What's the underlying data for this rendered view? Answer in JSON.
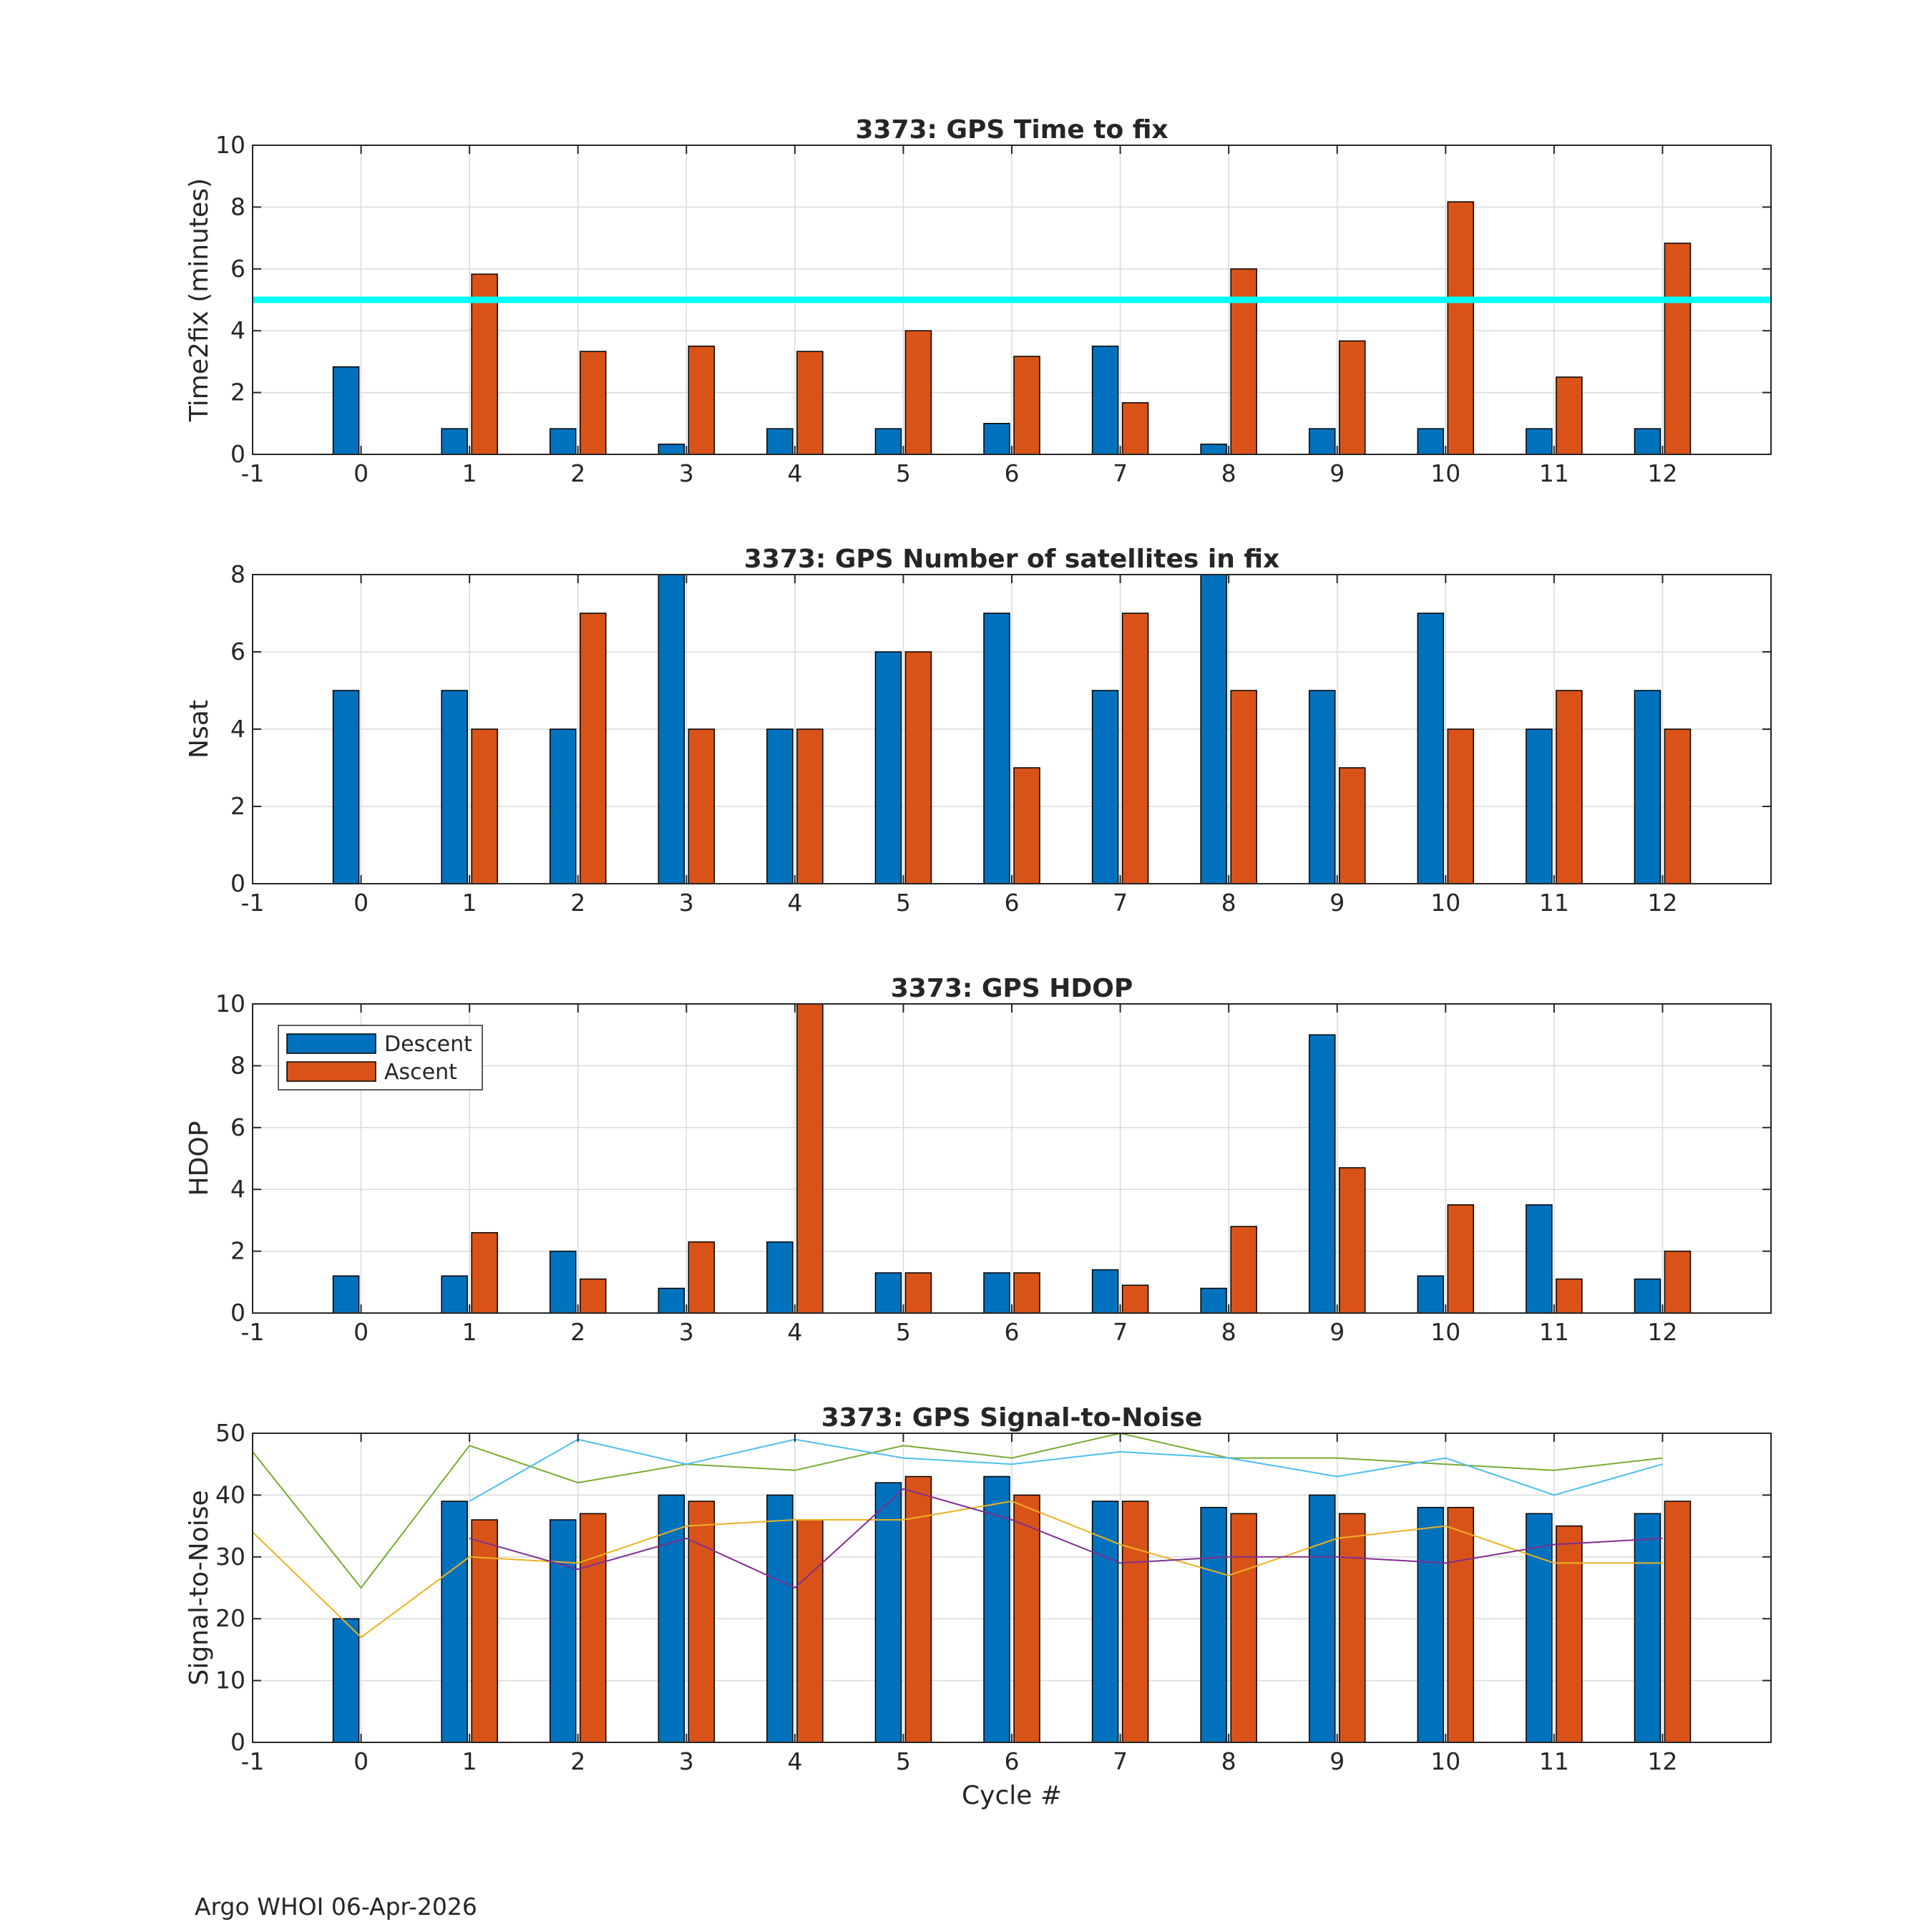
{
  "footer": "Argo WHOI 06-Apr-2026",
  "colors": {
    "descent": "#0072BD",
    "ascent": "#D95319",
    "threshold": "#00FFFF",
    "grid": "#DADADA",
    "axis": "#262626"
  },
  "legend": {
    "descent": "Descent",
    "ascent": "Ascent",
    "placement": "upper-left of HDOP panel"
  },
  "chart_data": [
    {
      "type": "bar",
      "title": "3373: GPS Time to fix",
      "ylabel": "Time2fix (minutes)",
      "xlabel": "",
      "xlim": [
        -1,
        13
      ],
      "ylim": [
        0,
        10
      ],
      "xticks": [
        -1,
        0,
        1,
        2,
        3,
        4,
        5,
        6,
        7,
        8,
        9,
        10,
        11,
        12
      ],
      "yticks": [
        0,
        2,
        4,
        6,
        8,
        10
      ],
      "categories": [
        0,
        1,
        2,
        3,
        4,
        5,
        6,
        7,
        8,
        9,
        10,
        11,
        12
      ],
      "series": [
        {
          "name": "Descent",
          "values": [
            2.83,
            0.83,
            0.83,
            0.33,
            0.83,
            0.83,
            1.0,
            3.5,
            0.33,
            0.83,
            0.83,
            0.83,
            0.83
          ]
        },
        {
          "name": "Ascent",
          "values": [
            null,
            5.83,
            3.33,
            3.5,
            3.33,
            4.0,
            3.17,
            1.67,
            6.0,
            3.67,
            8.17,
            2.5,
            6.83
          ]
        }
      ],
      "hline": {
        "y": 5,
        "color": "#00FFFF"
      }
    },
    {
      "type": "bar",
      "title": "3373: GPS Number of satellites in fix",
      "ylabel": "Nsat",
      "xlabel": "",
      "xlim": [
        -1,
        13
      ],
      "ylim": [
        0,
        8
      ],
      "xticks": [
        -1,
        0,
        1,
        2,
        3,
        4,
        5,
        6,
        7,
        8,
        9,
        10,
        11,
        12
      ],
      "yticks": [
        0,
        2,
        4,
        6,
        8
      ],
      "categories": [
        0,
        1,
        2,
        3,
        4,
        5,
        6,
        7,
        8,
        9,
        10,
        11,
        12
      ],
      "series": [
        {
          "name": "Descent",
          "values": [
            5,
            5,
            4,
            8,
            4,
            6,
            7,
            5,
            8,
            5,
            7,
            4,
            5
          ]
        },
        {
          "name": "Ascent",
          "values": [
            null,
            4,
            7,
            4,
            4,
            6,
            3,
            7,
            5,
            3,
            4,
            5,
            4
          ]
        }
      ]
    },
    {
      "type": "bar",
      "title": "3373: GPS HDOP",
      "ylabel": "HDOP",
      "xlabel": "",
      "xlim": [
        -1,
        13
      ],
      "ylim": [
        0,
        10
      ],
      "xticks": [
        -1,
        0,
        1,
        2,
        3,
        4,
        5,
        6,
        7,
        8,
        9,
        10,
        11,
        12
      ],
      "yticks": [
        0,
        2,
        4,
        6,
        8,
        10
      ],
      "categories": [
        0,
        1,
        2,
        3,
        4,
        5,
        6,
        7,
        8,
        9,
        10,
        11,
        12
      ],
      "series": [
        {
          "name": "Descent",
          "values": [
            1.2,
            1.2,
            2.0,
            0.8,
            2.3,
            1.3,
            1.3,
            1.4,
            0.8,
            9.0,
            1.2,
            3.5,
            1.1
          ]
        },
        {
          "name": "Ascent",
          "values": [
            null,
            2.6,
            1.1,
            2.3,
            10,
            1.3,
            1.3,
            0.9,
            2.8,
            4.7,
            3.5,
            1.1,
            2.0
          ]
        }
      ],
      "legend": true
    },
    {
      "type": "bar",
      "title": "3373: GPS Signal-to-Noise",
      "ylabel": "Signal-to-Noise",
      "xlabel": "Cycle #",
      "xlim": [
        -1,
        13
      ],
      "ylim": [
        0,
        50
      ],
      "xticks": [
        -1,
        0,
        1,
        2,
        3,
        4,
        5,
        6,
        7,
        8,
        9,
        10,
        11,
        12
      ],
      "yticks": [
        0,
        10,
        20,
        30,
        40,
        50
      ],
      "categories": [
        0,
        1,
        2,
        3,
        4,
        5,
        6,
        7,
        8,
        9,
        10,
        11,
        12
      ],
      "series": [
        {
          "name": "Descent",
          "values": [
            20,
            39,
            36,
            40,
            40,
            42,
            43,
            39,
            38,
            40,
            38,
            37,
            37
          ]
        },
        {
          "name": "Ascent",
          "values": [
            null,
            36,
            37,
            39,
            36,
            43,
            40,
            39,
            37,
            37,
            38,
            35,
            39
          ]
        }
      ],
      "lines": [
        {
          "color": "#77AC30",
          "x": [
            -1,
            0,
            1,
            2,
            3,
            4,
            5,
            6,
            7,
            8,
            9,
            10,
            11,
            12
          ],
          "values": [
            47,
            25,
            48,
            42,
            45,
            44,
            48,
            46,
            50,
            46,
            46,
            45,
            44,
            46
          ]
        },
        {
          "color": "#4DBEEE",
          "x": [
            1,
            2,
            3,
            4,
            5,
            6,
            7,
            8,
            9,
            10,
            11,
            12
          ],
          "values": [
            39,
            49,
            45,
            49,
            46,
            45,
            47,
            46,
            43,
            46,
            40,
            45
          ]
        },
        {
          "color": "#EDB120",
          "x": [
            -1,
            0,
            1,
            2,
            3,
            4,
            5,
            6,
            7,
            8,
            9,
            10,
            11,
            12
          ],
          "values": [
            34,
            17,
            30,
            29,
            35,
            36,
            36,
            39,
            32,
            27,
            33,
            35,
            29,
            29
          ]
        },
        {
          "color": "#7E2F8E",
          "x": [
            1,
            2,
            3,
            4,
            5,
            6,
            7,
            8,
            9,
            10,
            11,
            12
          ],
          "values": [
            33,
            28,
            33,
            25,
            41,
            36,
            29,
            30,
            30,
            29,
            32,
            33
          ]
        }
      ]
    }
  ]
}
